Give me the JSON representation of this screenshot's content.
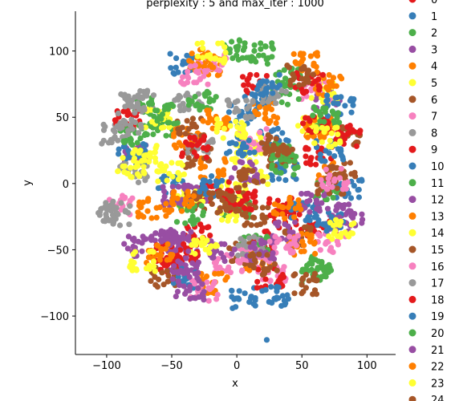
{
  "chart_data": {
    "type": "scatter",
    "title": "perplexity : 5 and max_iter : 1000",
    "xlabel": "x",
    "ylabel": "y",
    "xlim": [
      -124,
      122
    ],
    "ylim": [
      -129,
      130
    ],
    "x_ticks": [
      -100,
      -50,
      0,
      50,
      100
    ],
    "y_ticks": [
      -100,
      -50,
      0,
      50,
      100
    ],
    "grid": false,
    "legend_position": "right (outside plot, clipped)",
    "legend_labels": [
      "0",
      "1",
      "2",
      "3",
      "4",
      "5",
      "6",
      "7",
      "8",
      "9",
      "10",
      "11",
      "12",
      "13",
      "14",
      "15",
      "16",
      "17",
      "18",
      "19",
      "20",
      "21",
      "22",
      "23",
      "24"
    ],
    "palette": [
      "#e41a1c",
      "#377eb8",
      "#4daf4a",
      "#984ea3",
      "#ff7f00",
      "#ffff33",
      "#a65628",
      "#f781bf",
      "#999999"
    ],
    "series_colors": [
      "#e41a1c",
      "#377eb8",
      "#4daf4a",
      "#984ea3",
      "#ff7f00",
      "#ffff33",
      "#a65628",
      "#f781bf",
      "#999999",
      "#e41a1c",
      "#377eb8",
      "#4daf4a",
      "#984ea3",
      "#ff7f00",
      "#ffff33",
      "#a65628",
      "#f781bf",
      "#999999",
      "#e41a1c",
      "#377eb8",
      "#4daf4a",
      "#984ea3",
      "#ff7f00",
      "#ffff33",
      "#a65628"
    ],
    "cloud": {
      "center": [
        0,
        7
      ],
      "radius": 112,
      "points_per_series": 120
    },
    "outliers": [
      {
        "x": 23,
        "y": -118
      }
    ]
  }
}
